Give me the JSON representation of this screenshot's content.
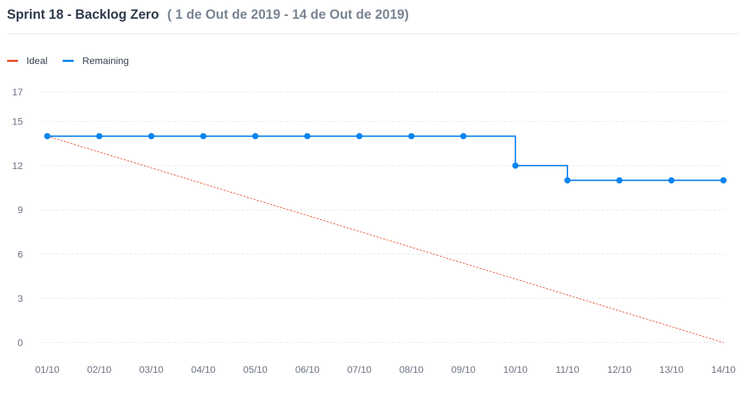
{
  "colors": {
    "ideal": "#e5512f",
    "remaining": "#0a84ee"
  },
  "header": {
    "title": "Sprint 18 - Backlog Zero",
    "subtitle": "( 1 de Out de 2019 - 14 de Out de 2019)"
  },
  "chart_data": {
    "type": "line",
    "categories": [
      "01/10",
      "02/10",
      "03/10",
      "04/10",
      "05/10",
      "06/10",
      "07/10",
      "08/10",
      "09/10",
      "10/10",
      "11/10",
      "12/10",
      "13/10",
      "14/10"
    ],
    "y_ticks": [
      0,
      3,
      6,
      9,
      12,
      15,
      17
    ],
    "ylim": [
      0,
      17
    ],
    "grid": true,
    "legend_placement": "top-left",
    "series": [
      {
        "name": "Ideal",
        "style": "dashed",
        "values": [
          14,
          12.92,
          11.85,
          10.77,
          9.69,
          8.62,
          7.54,
          6.46,
          5.38,
          4.31,
          3.23,
          2.15,
          1.08,
          0
        ]
      },
      {
        "name": "Remaining",
        "style": "step",
        "markers": true,
        "values": [
          14,
          14,
          14,
          14,
          14,
          14,
          14,
          14,
          14,
          12,
          11,
          11,
          11,
          11
        ]
      }
    ]
  }
}
